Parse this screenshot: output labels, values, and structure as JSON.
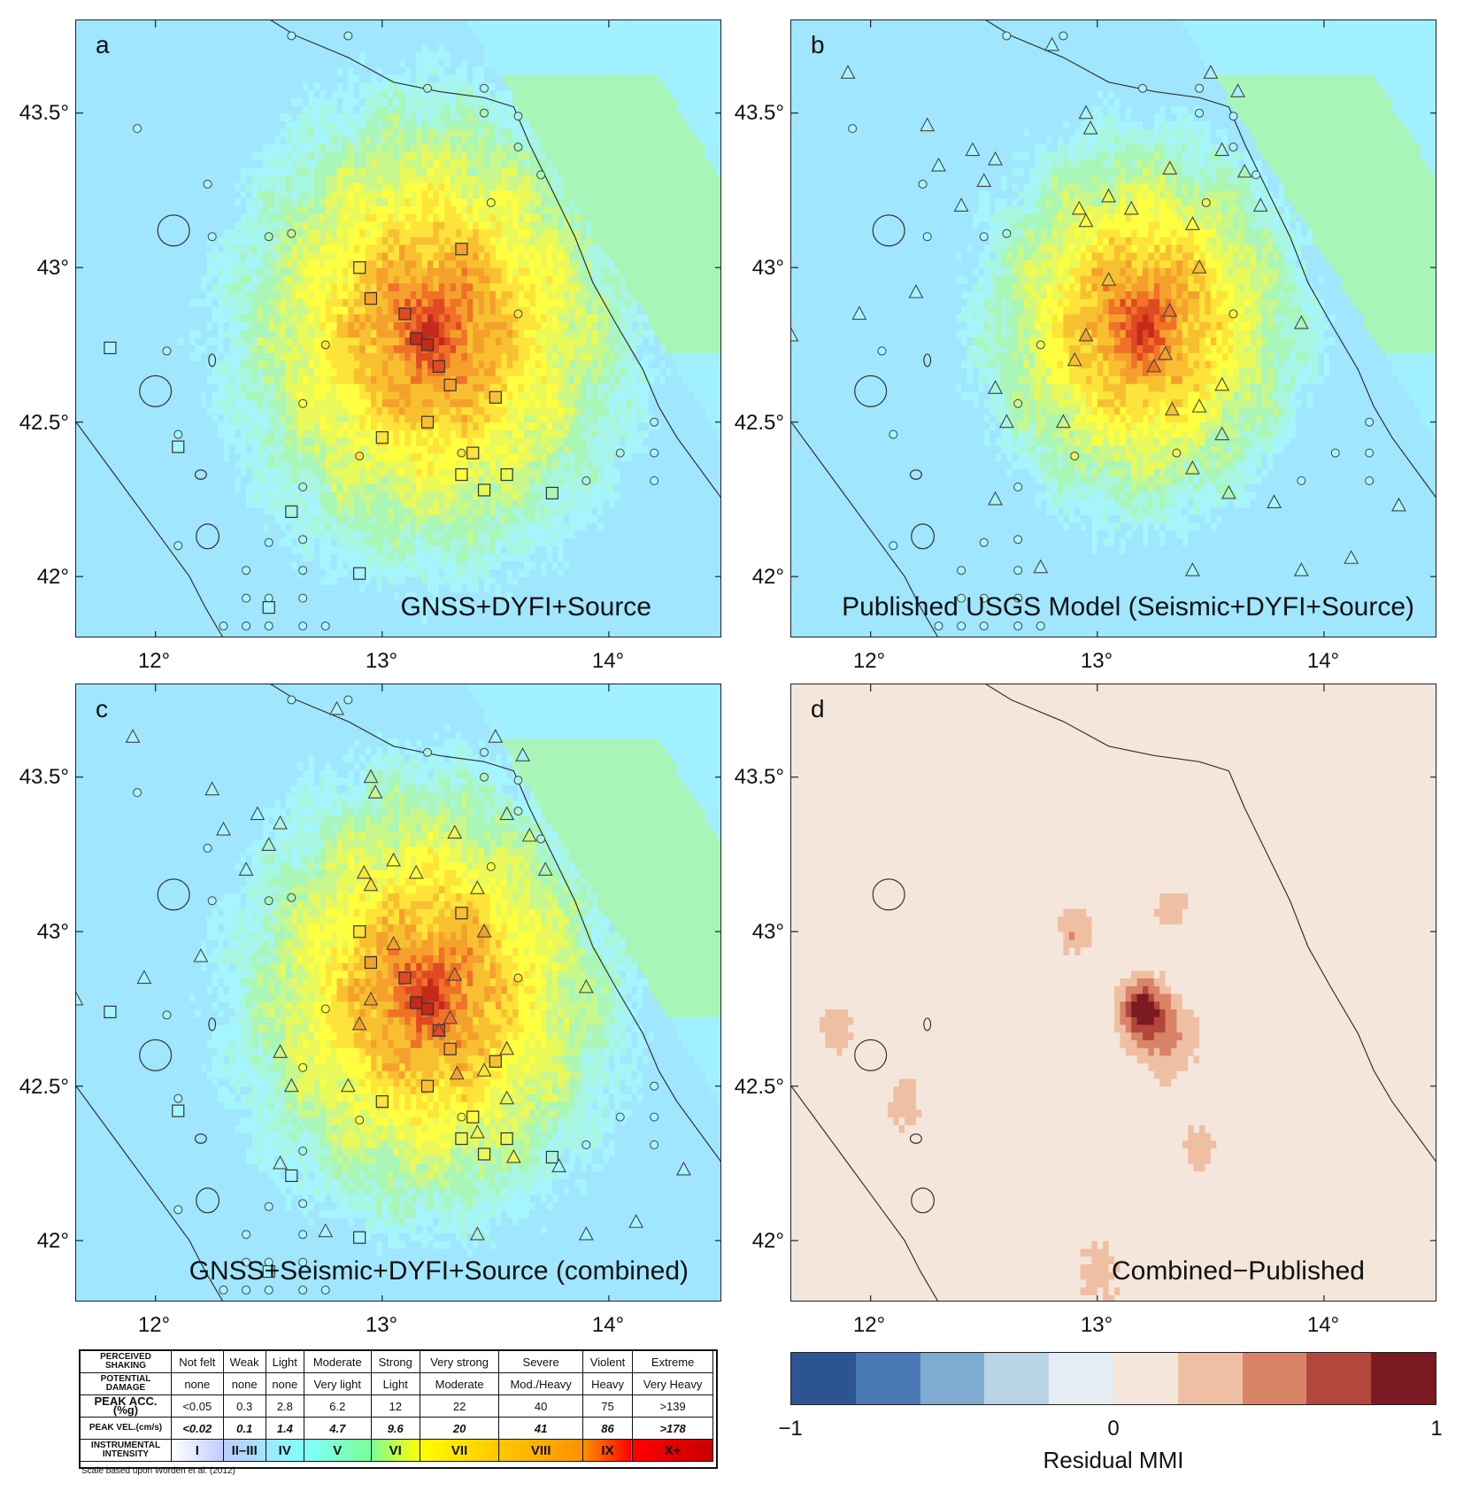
{
  "panels": [
    {
      "id": "a",
      "label": "a",
      "title": "GNSS+DYFI+Source",
      "mode": "intensity",
      "center": [
        13.22,
        42.8
      ],
      "spread": 1.0,
      "stations": "squares"
    },
    {
      "id": "b",
      "label": "b",
      "title": "Published USGS Model (Seismic+DYFI+Source)",
      "mode": "intensity",
      "center": [
        13.2,
        42.82
      ],
      "spread": 0.8,
      "stations": "triangles"
    },
    {
      "id": "c",
      "label": "c",
      "title": "GNSS+Seismic+DYFI+Source (combined)",
      "mode": "intensity",
      "center": [
        13.2,
        42.8
      ],
      "spread": 0.95,
      "stations": "both"
    },
    {
      "id": "d",
      "label": "d",
      "title": "Combined−Published",
      "mode": "residual"
    }
  ],
  "axes": {
    "lon_ticks": [
      "12°",
      "13°",
      "14°"
    ],
    "lat_ticks": [
      "43.5°",
      "43°",
      "42.5°",
      "42°"
    ],
    "lon_values": [
      12,
      13,
      14
    ],
    "lat_values": [
      43.5,
      43,
      42.5,
      42
    ],
    "lon_range": [
      11.65,
      14.5
    ],
    "lat_range": [
      41.8,
      43.8
    ]
  },
  "legend": {
    "rows": [
      {
        "head": "PERCEIVED SHAKING",
        "cells": [
          "Not felt",
          "Weak",
          "Light",
          "Moderate",
          "Strong",
          "Very strong",
          "Severe",
          "Violent",
          "Extreme"
        ],
        "cls": "shake"
      },
      {
        "head": "POTENTIAL DAMAGE",
        "cells": [
          "none",
          "none",
          "none",
          "Very light",
          "Light",
          "Moderate",
          "Mod./Heavy",
          "Heavy",
          "Very Heavy"
        ],
        "cls": "dmg"
      },
      {
        "head": "PEAK ACC.(%g)",
        "cells": [
          "<0.05",
          "0.3",
          "2.8",
          "6.2",
          "12",
          "22",
          "40",
          "75",
          ">139"
        ],
        "cls": "pga"
      },
      {
        "head": "PEAK VEL.(cm/s)",
        "cells": [
          "<0.02",
          "0.1",
          "1.4",
          "4.7",
          "9.6",
          "20",
          "41",
          "86",
          ">178"
        ],
        "cls": "pgv"
      },
      {
        "head": "INSTRUMENTAL INTENSITY",
        "cells": [
          "I",
          "II–III",
          "IV",
          "V",
          "VI",
          "VII",
          "VIII",
          "IX",
          "X+"
        ],
        "cls": "ii"
      }
    ],
    "intensity_colors": [
      "#ffffff",
      "#bfccff",
      "#a0e6ff",
      "#80ffff",
      "#7aff93",
      "#ffff00",
      "#ffc800",
      "#ff9100",
      "#ff0000",
      "#c80000"
    ],
    "note": "Scale based upon Worden et al. (2012)"
  },
  "colorbar": {
    "title": "Residual MMI",
    "ticks": [
      "−1",
      "0",
      "1"
    ],
    "colors": [
      "#2d5492",
      "#4a79b5",
      "#7eabcf",
      "#b9d3e6",
      "#e6ecf3",
      "#f5e6dc",
      "#efbfa3",
      "#d98367",
      "#b3473c",
      "#7a1a22"
    ]
  }
}
